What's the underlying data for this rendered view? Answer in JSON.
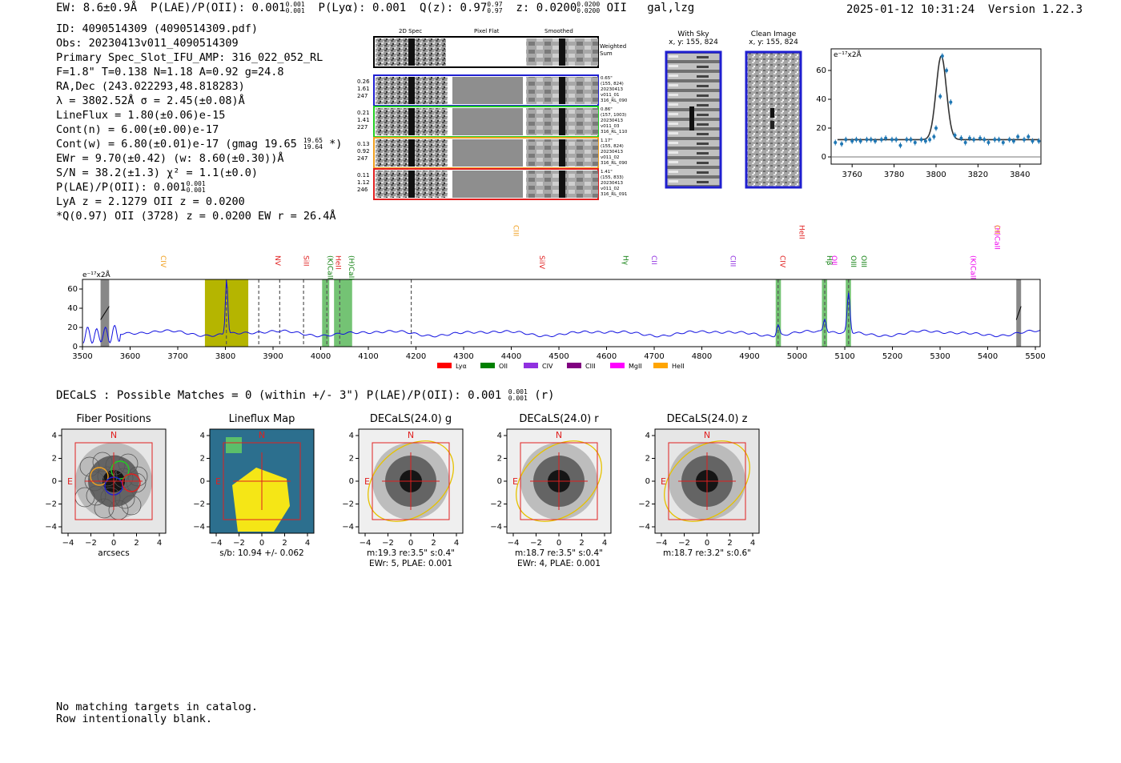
{
  "header": {
    "ew": "EW: 8.6±0.9Å",
    "plae_label": "P(LAE)/P(OII): 0.001",
    "plae_sup": "0.001",
    "plae_sub": "0.001",
    "plya": "P(Lyα): 0.001",
    "q_label": "Q(z): 0.97",
    "q_sup": "0.97",
    "q_sub": "0.97",
    "z_label": "z: 0.0200",
    "z_sup": "0.0200",
    "z_sub": "0.0200",
    "z_line": "OII",
    "flags": "gal,lzg",
    "timestamp": "2025-01-12 10:31:24",
    "version": "Version 1.22.3"
  },
  "info": {
    "id": "ID: 4090514309 (4090514309.pdf)",
    "obs": "Obs: 20230413v011_4090514309",
    "primary": "Primary Spec_Slot_IFU_AMP: 316_022_052_RL",
    "fwhm": "F=1.8\"  T=0.138  N=1.18  A=0.92  g=24.8",
    "radec": "RA,Dec (243.022293,48.818283)",
    "lambda": "λ = 3802.52Å  σ = 2.45(±0.08)Å",
    "lineflux": "LineFlux = 1.80(±0.06)e-15",
    "contn": "Cont(n) = 6.00(±0.00)e-17",
    "contw": "Cont(w) = 6.80(±0.01)e-17 (gmag 19.65",
    "contw_sup": "19.65",
    "contw_sub": "19.64",
    "contw_end": "*)",
    "ewr": "EWr = 9.70(±0.42) (w: 8.60(±0.30))Å",
    "sn": "S/N = 38.2(±1.3)  χ² = 1.1(±0.0)",
    "plae": "P(LAE)/P(OII): 0.001",
    "plae_sup": "0.001",
    "plae_sub": "0.001",
    "lya": "LyA z = 2.1279  OII z = 0.0200",
    "q": "*Q(0.97) OII (3728) z = 0.0200  EW r = 26.4Å"
  },
  "cutouts": {
    "col_2d": "2D Spec",
    "col_flat": "Pixel Flat",
    "col_smooth": "Smoothed",
    "weighted": [
      "Weighted",
      "Sum"
    ],
    "rows": [
      {
        "left": [
          "0.26",
          "1.61",
          "247"
        ],
        "right": [
          "0.65\"",
          "(155, 824)",
          "20230413",
          "v011_01",
          "316_RL_090"
        ],
        "color": "#1f1fd0"
      },
      {
        "left": [
          "0.21",
          "1.41",
          "227"
        ],
        "right": [
          "0.86\"",
          "(157, 1003)",
          "20230413",
          "v011_03",
          "316_RL_110"
        ],
        "color": "#22cc22"
      },
      {
        "left": [
          "0.13",
          "0.92",
          "247"
        ],
        "right": [
          "1.17\"",
          "(155, 824)",
          "20230413",
          "v011_02",
          "316_RL_090"
        ],
        "color": "#f0a020"
      },
      {
        "left": [
          "0.11",
          "1.12",
          "246"
        ],
        "right": [
          "1.41\"",
          "(155, 833)",
          "20230413",
          "v011_02",
          "316_RL_091"
        ],
        "color": "#e02020"
      }
    ]
  },
  "sky": {
    "title": "With Sky",
    "coords": "x, y: 155, 824"
  },
  "clean": {
    "title": "Clean Image",
    "coords": "x, y: 155, 824"
  },
  "fit_plot": {
    "ylabel": "e⁻¹⁷x2Å",
    "xticks": [
      "3760",
      "3780",
      "3800",
      "3820",
      "3840"
    ],
    "yticks": [
      "0",
      "20",
      "40",
      "60"
    ]
  },
  "spectrum": {
    "ylabel": "e⁻¹⁷x2Å",
    "xticks": [
      "3500",
      "3600",
      "3700",
      "3800",
      "3900",
      "4000",
      "4100",
      "4200",
      "4300",
      "4400",
      "4500",
      "4600",
      "4700",
      "4800",
      "4900",
      "5000",
      "5100",
      "5200",
      "5300",
      "5400",
      "5500"
    ],
    "yticks": [
      "0",
      "20",
      "40",
      "60"
    ],
    "line_labels": [
      {
        "text": "CIV",
        "color": "#f0a020"
      },
      {
        "text": "NV",
        "color": "#e02020"
      },
      {
        "text": "SiII",
        "color": "#e02020"
      },
      {
        "text": "(K)CaII",
        "color": "#108010"
      },
      {
        "text": "HeII",
        "color": "#e02020"
      },
      {
        "text": "(H)CaII",
        "color": "#108010"
      },
      {
        "text": "CIII",
        "color": "#f0a020"
      },
      {
        "text": "SiIV",
        "color": "#e02020"
      },
      {
        "text": "Hγ",
        "color": "#108010"
      },
      {
        "text": "CII",
        "color": "#9030e0"
      },
      {
        "text": "CIII",
        "color": "#9030e0"
      },
      {
        "text": "CIV",
        "color": "#e02020"
      },
      {
        "text": "Hβ",
        "color": "#108010"
      },
      {
        "text": "OIII",
        "color": "#108010"
      },
      {
        "text": "OIII",
        "color": "#108010"
      },
      {
        "text": "HeII",
        "color": "#e02020"
      },
      {
        "text": "OII",
        "color": "#ee00ee"
      },
      {
        "text": "(K)CaII",
        "color": "#ee00ee"
      },
      {
        "text": "(H)CaII",
        "color": "#ee00ee"
      },
      {
        "text": "CII",
        "color": "#f0a020"
      }
    ],
    "legend": [
      {
        "label": "Lyα",
        "color": "#ff0000"
      },
      {
        "label": "OII",
        "color": "#008000"
      },
      {
        "label": "CIV",
        "color": "#9030e0"
      },
      {
        "label": "CIII",
        "color": "#800080"
      },
      {
        "label": "MgII",
        "color": "#ff00ff"
      },
      {
        "label": "HeII",
        "color": "#ffa500"
      }
    ]
  },
  "chart_data": [
    {
      "type": "scatter",
      "title": "",
      "xlabel": "",
      "ylabel": "e⁻¹⁷x2Å",
      "xlim": [
        3750,
        3850
      ],
      "ylim": [
        -5,
        75
      ],
      "x": [
        3752,
        3755,
        3757,
        3760,
        3762,
        3764,
        3767,
        3769,
        3771,
        3774,
        3776,
        3779,
        3781,
        3783,
        3786,
        3788,
        3790,
        3793,
        3795,
        3797,
        3799,
        3800,
        3802,
        3803,
        3805,
        3807,
        3809,
        3812,
        3814,
        3816,
        3818,
        3821,
        3823,
        3825,
        3828,
        3830,
        3832,
        3835,
        3837,
        3839,
        3842,
        3844,
        3846,
        3849
      ],
      "y": [
        10,
        9,
        12,
        11,
        12,
        11,
        12,
        12,
        11,
        12,
        13,
        12,
        12,
        8,
        12,
        12,
        10,
        12,
        11,
        12,
        14,
        20,
        42,
        70,
        60,
        38,
        15,
        13,
        10,
        13,
        12,
        13,
        12,
        10,
        12,
        12,
        10,
        12,
        11,
        14,
        12,
        14,
        11,
        11
      ],
      "fit_peak": 70,
      "fit_center": 3802.5,
      "fit_sigma": 2.45,
      "fit_continuum": 12
    },
    {
      "type": "line",
      "title": "",
      "xlabel": "",
      "ylabel": "e⁻¹⁷x2Å",
      "xlim": [
        3500,
        5510
      ],
      "ylim": [
        0,
        70
      ],
      "baseline": 14,
      "emission_lines": [
        {
          "center": 3802.5,
          "peak": 72,
          "width": 2.5
        },
        {
          "center": 4960,
          "peak": 25,
          "width": 3
        },
        {
          "center": 5058,
          "peak": 28,
          "width": 3
        },
        {
          "center": 5108,
          "peak": 55,
          "width": 3
        }
      ],
      "highlight_bands": [
        {
          "from": 3538,
          "to": 3556,
          "kind": "grey"
        },
        {
          "from": 3757,
          "to": 3848,
          "kind": "yellow"
        },
        {
          "from": 4003,
          "to": 4018,
          "kind": "green"
        },
        {
          "from": 4028,
          "to": 4066,
          "kind": "green"
        },
        {
          "from": 4955,
          "to": 4966,
          "kind": "green"
        },
        {
          "from": 5052,
          "to": 5063,
          "kind": "green"
        },
        {
          "from": 5102,
          "to": 5113,
          "kind": "green"
        },
        {
          "from": 5460,
          "to": 5470,
          "kind": "grey"
        }
      ],
      "dashed_lines": [
        3802,
        3870,
        3914,
        3964,
        4013,
        4040,
        4190,
        4960,
        5058,
        5108
      ]
    }
  ],
  "decals": {
    "summary": "DECaLS : Possible Matches = 0 (within +/- 3\")  P(LAE)/P(OII): 0.001",
    "summary_sup": "0.001",
    "summary_sub": "0.001",
    "summary_end": "(r)",
    "panels": [
      {
        "title": "Fiber Positions",
        "caption1": "arcsecs",
        "caption2": ""
      },
      {
        "title": "Lineflux Map",
        "caption1": "s/b: 10.94 +/- 0.062",
        "caption2": ""
      },
      {
        "title": "DECaLS(24.0) g",
        "caption1": "m:19.3  re:3.5\"  s:0.4\"",
        "caption2": "EWr: 5, PLAE: 0.001"
      },
      {
        "title": "DECaLS(24.0) r",
        "caption1": "m:18.7  re:3.5\"  s:0.4\"",
        "caption2": "EWr: 4, PLAE: 0.001"
      },
      {
        "title": "DECaLS(24.0) z",
        "caption1": "m:18.7  re:3.2\"  s:0.6\"",
        "caption2": ""
      }
    ],
    "ticks": [
      "−4",
      "−2",
      "0",
      "2",
      "4"
    ],
    "north": "N",
    "east": "E"
  },
  "footer": {
    "line1": "No matching targets in catalog.",
    "line2": "Row intentionally blank."
  }
}
